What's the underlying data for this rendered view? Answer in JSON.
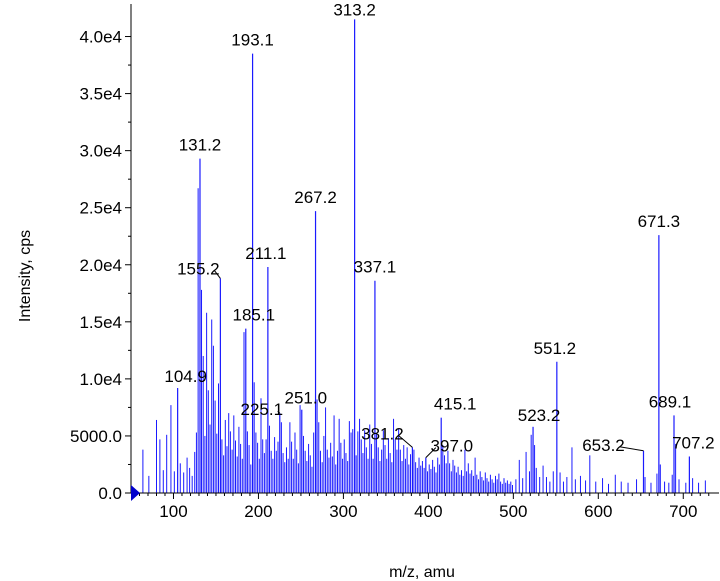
{
  "chart_data": {
    "type": "bar",
    "title": "",
    "xlabel": "m/z, amu",
    "ylabel": "Intensity, cps",
    "xlim": [
      50,
      735
    ],
    "ylim": [
      0,
      42500
    ],
    "x_ticks": [
      100,
      200,
      300,
      400,
      500,
      600,
      700
    ],
    "x_tick_labels": [
      "100",
      "200",
      "300",
      "400",
      "500",
      "600",
      "700"
    ],
    "y_ticks": [
      0,
      5000,
      10000,
      15000,
      20000,
      25000,
      30000,
      35000,
      40000
    ],
    "y_tick_labels": [
      "0.0",
      "5000.0",
      "1.0e4",
      "1.5e4",
      "2.0e4",
      "2.5e4",
      "3.0e4",
      "3.5e4",
      "4.0e4"
    ],
    "grid": false,
    "colors": {
      "peaks": "#1a1aff",
      "axis": "#000000",
      "marker": "#0000cc"
    },
    "labeled_peaks": [
      {
        "label": "313.2",
        "x": 313.2,
        "y": 41500
      },
      {
        "label": "193.1",
        "x": 193.1,
        "y": 38500
      },
      {
        "label": "131.2",
        "x": 131.2,
        "y": 29300
      },
      {
        "label": "267.2",
        "x": 267.2,
        "y": 24700
      },
      {
        "label": "671.3",
        "x": 671.3,
        "y": 22600
      },
      {
        "label": "211.1",
        "x": 211.1,
        "y": 19800
      },
      {
        "label": "155.2",
        "x": 155.2,
        "y": 18800
      },
      {
        "label": "337.1",
        "x": 337.1,
        "y": 18600
      },
      {
        "label": "185.1",
        "x": 185.1,
        "y": 14400
      },
      {
        "label": "551.2",
        "x": 551.2,
        "y": 11500
      },
      {
        "label": "104.9",
        "x": 104.9,
        "y": 9200
      },
      {
        "label": "251.0",
        "x": 251.0,
        "y": 7300
      },
      {
        "label": "225.1",
        "x": 225.1,
        "y": 7000
      },
      {
        "label": "415.1",
        "x": 415.1,
        "y": 6600
      },
      {
        "label": "689.1",
        "x": 689.1,
        "y": 6800
      },
      {
        "label": "523.2",
        "x": 523.2,
        "y": 5800
      },
      {
        "label": "381.2",
        "x": 381.2,
        "y": 4000
      },
      {
        "label": "653.2",
        "x": 653.2,
        "y": 3700
      },
      {
        "label": "397.0",
        "x": 397.0,
        "y": 3100
      },
      {
        "label": "707.2",
        "x": 707.2,
        "y": 3200
      }
    ],
    "unlabeled_peaks": [
      [
        64,
        3800
      ],
      [
        71,
        1500
      ],
      [
        80,
        6400
      ],
      [
        84,
        4700
      ],
      [
        88,
        2000
      ],
      [
        92,
        5100
      ],
      [
        97,
        7700
      ],
      [
        101,
        1900
      ],
      [
        108,
        2600
      ],
      [
        112,
        1800
      ],
      [
        116,
        3100
      ],
      [
        119,
        2200
      ],
      [
        122,
        1500
      ],
      [
        125,
        3600
      ],
      [
        127,
        5300
      ],
      [
        129,
        26700
      ],
      [
        133,
        17800
      ],
      [
        135,
        12000
      ],
      [
        137,
        5000
      ],
      [
        139,
        15800
      ],
      [
        141,
        9000
      ],
      [
        143,
        6000
      ],
      [
        145,
        15200
      ],
      [
        147,
        12900
      ],
      [
        149,
        8100
      ],
      [
        151,
        5200
      ],
      [
        153,
        9600
      ],
      [
        157,
        4700
      ],
      [
        159,
        3300
      ],
      [
        161,
        6400
      ],
      [
        163,
        4100
      ],
      [
        165,
        7000
      ],
      [
        167,
        5400
      ],
      [
        169,
        3800
      ],
      [
        171,
        6800
      ],
      [
        173,
        4600
      ],
      [
        175,
        3200
      ],
      [
        177,
        5800
      ],
      [
        179,
        4300
      ],
      [
        181,
        3000
      ],
      [
        183,
        14100
      ],
      [
        187,
        5400
      ],
      [
        189,
        4200
      ],
      [
        191,
        2500
      ],
      [
        195,
        9700
      ],
      [
        197,
        5300
      ],
      [
        199,
        4400
      ],
      [
        201,
        3000
      ],
      [
        203,
        8300
      ],
      [
        205,
        4700
      ],
      [
        207,
        3500
      ],
      [
        209,
        4700
      ],
      [
        213,
        5900
      ],
      [
        215,
        3700
      ],
      [
        217,
        3000
      ],
      [
        219,
        4900
      ],
      [
        221,
        3700
      ],
      [
        223,
        4500
      ],
      [
        227,
        6200
      ],
      [
        229,
        3500
      ],
      [
        231,
        2700
      ],
      [
        233,
        4000
      ],
      [
        235,
        3000
      ],
      [
        237,
        6200
      ],
      [
        239,
        4500
      ],
      [
        241,
        3000
      ],
      [
        243,
        5300
      ],
      [
        245,
        3800
      ],
      [
        247,
        2600
      ],
      [
        249,
        7700
      ],
      [
        253,
        5000
      ],
      [
        255,
        3700
      ],
      [
        257,
        2800
      ],
      [
        259,
        4300
      ],
      [
        261,
        3300
      ],
      [
        263,
        2300
      ],
      [
        265,
        5300
      ],
      [
        269,
        8200
      ],
      [
        271,
        6200
      ],
      [
        273,
        3700
      ],
      [
        275,
        2700
      ],
      [
        277,
        5000
      ],
      [
        279,
        7500
      ],
      [
        281,
        3800
      ],
      [
        283,
        3100
      ],
      [
        285,
        4400
      ],
      [
        287,
        3200
      ],
      [
        289,
        6800
      ],
      [
        291,
        2500
      ],
      [
        293,
        3700
      ],
      [
        295,
        6500
      ],
      [
        297,
        4400
      ],
      [
        299,
        3000
      ],
      [
        301,
        4700
      ],
      [
        303,
        3500
      ],
      [
        305,
        2800
      ],
      [
        307,
        6300
      ],
      [
        309,
        5300
      ],
      [
        311,
        5600
      ],
      [
        315,
        3300
      ],
      [
        317,
        5400
      ],
      [
        319,
        6500
      ],
      [
        321,
        4700
      ],
      [
        323,
        3500
      ],
      [
        325,
        5500
      ],
      [
        327,
        4000
      ],
      [
        329,
        3000
      ],
      [
        331,
        6000
      ],
      [
        333,
        4300
      ],
      [
        335,
        3000
      ],
      [
        339,
        5300
      ],
      [
        341,
        4000
      ],
      [
        343,
        2800
      ],
      [
        345,
        3800
      ],
      [
        347,
        5500
      ],
      [
        349,
        4200
      ],
      [
        351,
        3000
      ],
      [
        353,
        4800
      ],
      [
        355,
        3500
      ],
      [
        357,
        2700
      ],
      [
        359,
        6500
      ],
      [
        361,
        4700
      ],
      [
        363,
        3800
      ],
      [
        365,
        5600
      ],
      [
        367,
        3800
      ],
      [
        369,
        2800
      ],
      [
        371,
        4200
      ],
      [
        373,
        3000
      ],
      [
        375,
        4000
      ],
      [
        377,
        2500
      ],
      [
        379,
        3400
      ],
      [
        383,
        3800
      ],
      [
        385,
        2700
      ],
      [
        387,
        2200
      ],
      [
        389,
        3100
      ],
      [
        391,
        2400
      ],
      [
        393,
        2800
      ],
      [
        395,
        2200
      ],
      [
        399,
        1900
      ],
      [
        401,
        2500
      ],
      [
        403,
        2100
      ],
      [
        405,
        2900
      ],
      [
        407,
        2300
      ],
      [
        409,
        1800
      ],
      [
        411,
        3100
      ],
      [
        413,
        2500
      ],
      [
        417,
        4200
      ],
      [
        419,
        3300
      ],
      [
        421,
        2600
      ],
      [
        423,
        3700
      ],
      [
        425,
        2600
      ],
      [
        427,
        1900
      ],
      [
        429,
        2900
      ],
      [
        431,
        2400
      ],
      [
        433,
        1800
      ],
      [
        435,
        2300
      ],
      [
        437,
        1600
      ],
      [
        439,
        2000
      ],
      [
        441,
        1500
      ],
      [
        443,
        3800
      ],
      [
        445,
        1900
      ],
      [
        447,
        2600
      ],
      [
        449,
        1700
      ],
      [
        451,
        2000
      ],
      [
        453,
        1500
      ],
      [
        455,
        3100
      ],
      [
        457,
        1600
      ],
      [
        459,
        1200
      ],
      [
        461,
        1900
      ],
      [
        463,
        1400
      ],
      [
        465,
        1100
      ],
      [
        467,
        1800
      ],
      [
        469,
        1300
      ],
      [
        471,
        1000
      ],
      [
        473,
        1600
      ],
      [
        475,
        1200
      ],
      [
        477,
        900
      ],
      [
        479,
        1500
      ],
      [
        481,
        1200
      ],
      [
        483,
        1700
      ],
      [
        485,
        1000
      ],
      [
        487,
        800
      ],
      [
        489,
        1300
      ],
      [
        491,
        900
      ],
      [
        493,
        1100
      ],
      [
        495,
        800
      ],
      [
        497,
        1000
      ],
      [
        499,
        700
      ],
      [
        503,
        1200
      ],
      [
        507,
        2900
      ],
      [
        511,
        1300
      ],
      [
        515,
        3600
      ],
      [
        519,
        1900
      ],
      [
        521,
        5100
      ],
      [
        525,
        4200
      ],
      [
        527,
        2200
      ],
      [
        531,
        1400
      ],
      [
        535,
        2400
      ],
      [
        539,
        1400
      ],
      [
        543,
        1000
      ],
      [
        547,
        1900
      ],
      [
        555,
        1800
      ],
      [
        559,
        1000
      ],
      [
        563,
        1400
      ],
      [
        569,
        4000
      ],
      [
        573,
        1200
      ],
      [
        579,
        1500
      ],
      [
        585,
        1100
      ],
      [
        590,
        3300
      ],
      [
        597,
        1000
      ],
      [
        605,
        1300
      ],
      [
        612,
        800
      ],
      [
        620,
        1600
      ],
      [
        627,
        1000
      ],
      [
        635,
        900
      ],
      [
        645,
        1200
      ],
      [
        655,
        1400
      ],
      [
        662,
        900
      ],
      [
        669,
        1700
      ],
      [
        673,
        2500
      ],
      [
        678,
        1000
      ],
      [
        683,
        900
      ],
      [
        687,
        1600
      ],
      [
        691,
        4300
      ],
      [
        695,
        1200
      ],
      [
        703,
        900
      ],
      [
        711,
        1300
      ],
      [
        718,
        900
      ],
      [
        726,
        1100
      ]
    ]
  }
}
